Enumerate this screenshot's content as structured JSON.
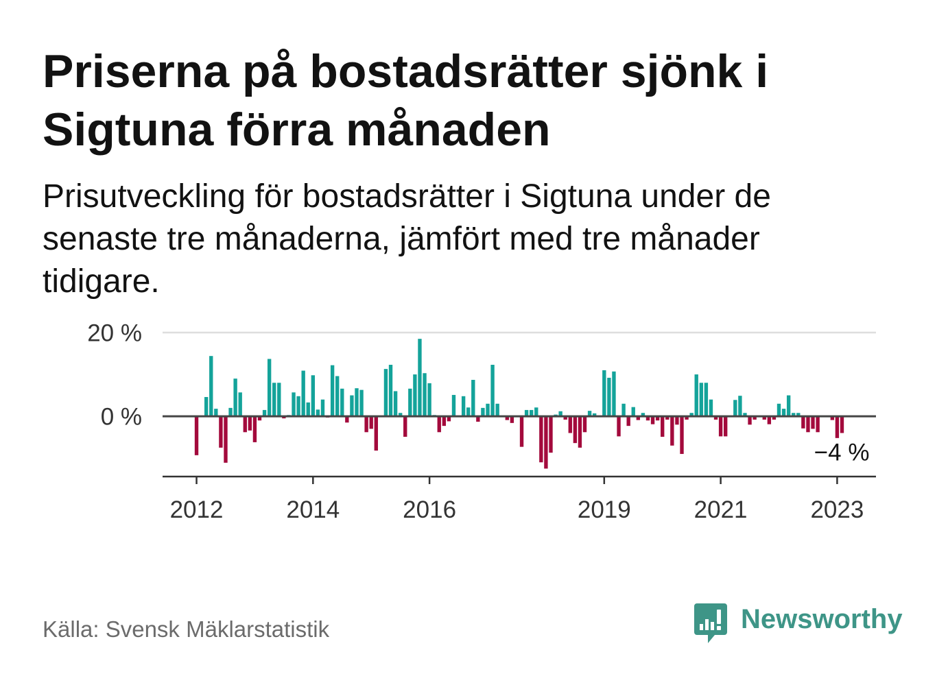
{
  "source": "Källa: Svensk Mäklarstatistik",
  "logo": {
    "text": "Newsworthy",
    "icon": "newsworthy-logo-icon"
  },
  "colors": {
    "positive": "#14a39a",
    "negative": "#a30a3c",
    "grid": "#dedede",
    "zero_line": "#454545",
    "axis": "#333333",
    "text": "#121212",
    "tick_text": "#333333",
    "source_text": "#6b6b6b",
    "brand": "#3e9587"
  },
  "chart_data": {
    "type": "bar",
    "title": "Priserna på bostadsrätter sjönk i Sigtuna förra månaden",
    "subtitle": "Prisutveckling för bostadsrätter i Sigtuna under de senaste tre månaderna, jämfört med tre månader tidigare.",
    "x": [
      "2012-01",
      "2012-02",
      "2012-03",
      "2012-04",
      "2012-05",
      "2012-06",
      "2012-07",
      "2012-08",
      "2012-09",
      "2012-10",
      "2012-11",
      "2012-12",
      "2013-01",
      "2013-02",
      "2013-03",
      "2013-04",
      "2013-05",
      "2013-06",
      "2013-07",
      "2013-08",
      "2013-09",
      "2013-10",
      "2013-11",
      "2013-12",
      "2014-01",
      "2014-02",
      "2014-03",
      "2014-04",
      "2014-05",
      "2014-06",
      "2014-07",
      "2014-08",
      "2014-09",
      "2014-10",
      "2014-11",
      "2014-12",
      "2015-01",
      "2015-02",
      "2015-03",
      "2015-04",
      "2015-05",
      "2015-06",
      "2015-07",
      "2015-08",
      "2015-09",
      "2015-10",
      "2015-11",
      "2015-12",
      "2016-01",
      "2016-02",
      "2016-03",
      "2016-04",
      "2016-05",
      "2016-06",
      "2016-07",
      "2016-08",
      "2016-09",
      "2016-10",
      "2016-11",
      "2016-12",
      "2017-01",
      "2017-02",
      "2017-03",
      "2017-04",
      "2017-05",
      "2017-06",
      "2017-07",
      "2017-08",
      "2017-09",
      "2017-10",
      "2017-11",
      "2017-12",
      "2018-01",
      "2018-02",
      "2018-03",
      "2018-04",
      "2018-05",
      "2018-06",
      "2018-07",
      "2018-08",
      "2018-09",
      "2018-10",
      "2018-11",
      "2018-12",
      "2019-01",
      "2019-02",
      "2019-03",
      "2019-04",
      "2019-05",
      "2019-06",
      "2019-07",
      "2019-08",
      "2019-09",
      "2019-10",
      "2019-11",
      "2019-12",
      "2020-01",
      "2020-02",
      "2020-03",
      "2020-04",
      "2020-05",
      "2020-06",
      "2020-07",
      "2020-08",
      "2020-09",
      "2020-10",
      "2020-11",
      "2020-12",
      "2021-01",
      "2021-02",
      "2021-03",
      "2021-04",
      "2021-05",
      "2021-06",
      "2021-07",
      "2021-08",
      "2021-09",
      "2021-10",
      "2021-11",
      "2021-12",
      "2022-01",
      "2022-02",
      "2022-03",
      "2022-04",
      "2022-05",
      "2022-06",
      "2022-07",
      "2022-08",
      "2022-09",
      "2022-10",
      "2022-11",
      "2022-12",
      "2023-01",
      "2023-02"
    ],
    "values": [
      -9.3,
      null,
      4.6,
      14.4,
      1.8,
      -7.5,
      -11.1,
      2.0,
      9.0,
      5.7,
      -3.8,
      -3.4,
      -6.2,
      -1.0,
      1.5,
      13.7,
      8.0,
      8.0,
      -0.5,
      0.3,
      5.7,
      4.8,
      10.9,
      3.3,
      9.8,
      1.6,
      4.0,
      -0.3,
      12.2,
      9.6,
      6.6,
      -1.5,
      5.0,
      6.7,
      6.3,
      -3.8,
      -3.0,
      -8.2,
      null,
      11.3,
      12.3,
      6.0,
      0.8,
      -4.9,
      6.6,
      10.0,
      18.5,
      10.3,
      7.9,
      0.3,
      -3.8,
      -2.3,
      -1.2,
      5.1,
      null,
      4.8,
      2.1,
      8.7,
      -1.3,
      2.0,
      3.0,
      12.3,
      3.0,
      null,
      -0.9,
      -1.6,
      null,
      -7.3,
      1.5,
      1.5,
      2.1,
      -11.0,
      -12.5,
      -8.7,
      0.4,
      1.2,
      -0.8,
      -4.0,
      -6.4,
      -7.5,
      -3.8,
      1.3,
      0.7,
      null,
      11.0,
      9.2,
      10.7,
      -4.8,
      3.0,
      -2.3,
      2.2,
      -0.9,
      0.8,
      -1.0,
      -1.9,
      -1.0,
      -4.9,
      -0.8,
      -7.0,
      -2.0,
      -9.0,
      -0.8,
      0.8,
      10.0,
      8.0,
      8.0,
      4.0,
      -0.8,
      -4.8,
      -4.8,
      null,
      3.9,
      4.9,
      0.8,
      -2.0,
      -0.8,
      null,
      -0.8,
      -1.9,
      -0.8,
      3.0,
      1.8,
      5.0,
      0.8,
      0.8,
      -2.9,
      -3.8,
      -3.0,
      -3.8,
      null,
      null,
      -0.9,
      -5.2,
      -4.0
    ],
    "xlim": [
      "2011-06",
      "2023-09"
    ],
    "ylim": [
      -14.4,
      20
    ],
    "y_ticks": [
      {
        "value": 20,
        "label": "20 %"
      },
      {
        "value": 0,
        "label": "0 %"
      }
    ],
    "x_ticks": [
      {
        "value": "2012-01",
        "label": "2012"
      },
      {
        "value": "2014-01",
        "label": "2014"
      },
      {
        "value": "2016-01",
        "label": "2016"
      },
      {
        "value": "2019-01",
        "label": "2019"
      },
      {
        "value": "2021-01",
        "label": "2021"
      },
      {
        "value": "2023-01",
        "label": "2023"
      }
    ],
    "annotation": {
      "x": "2023-02",
      "value": -4,
      "label": "−4 %"
    },
    "grid": true
  }
}
